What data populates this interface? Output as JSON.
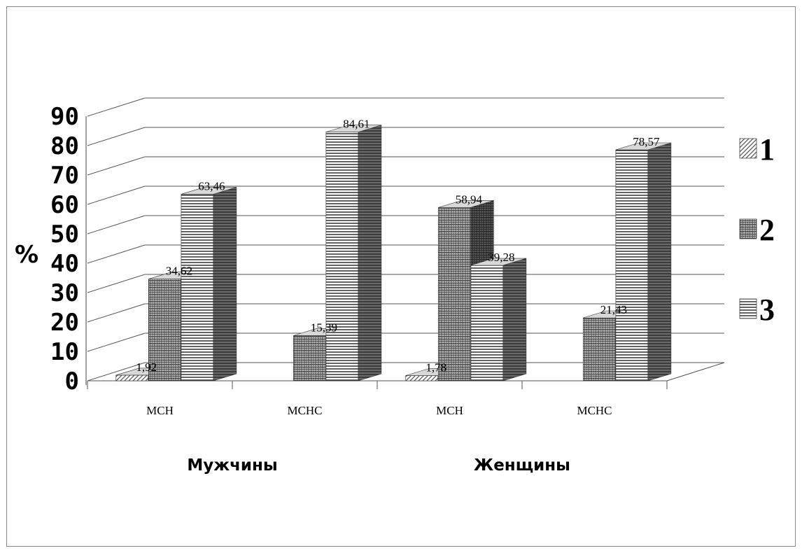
{
  "chart_data": {
    "type": "bar",
    "variant": "3d-clustered",
    "title": "",
    "ylabel": "%",
    "xlabel": "",
    "ylim": [
      0,
      90
    ],
    "y_ticks": [
      "0",
      "10",
      "20",
      "30",
      "40",
      "50",
      "60",
      "70",
      "80",
      "90"
    ],
    "grid": true,
    "legend_position": "right",
    "groups": [
      {
        "name": "Мужчины",
        "categories": [
          "МСН",
          "МСНС"
        ]
      },
      {
        "name": "Женщины",
        "categories": [
          "МСН",
          "МСНС"
        ]
      }
    ],
    "categories": [
      "МСН",
      "МСНС",
      "МСН",
      "МСНС"
    ],
    "series": [
      {
        "name": "1",
        "values": [
          1.92,
          null,
          1.78,
          null
        ],
        "labels": [
          "1,92",
          "",
          "1,78",
          ""
        ]
      },
      {
        "name": "2",
        "values": [
          34.62,
          15.39,
          58.94,
          21.43
        ],
        "labels": [
          "34,62",
          "15,39",
          "58,94",
          "21,43"
        ]
      },
      {
        "name": "3",
        "values": [
          63.46,
          84.61,
          39.28,
          78.57
        ],
        "labels": [
          "63,46",
          "84,61",
          "39,28",
          "78,57"
        ]
      }
    ]
  }
}
